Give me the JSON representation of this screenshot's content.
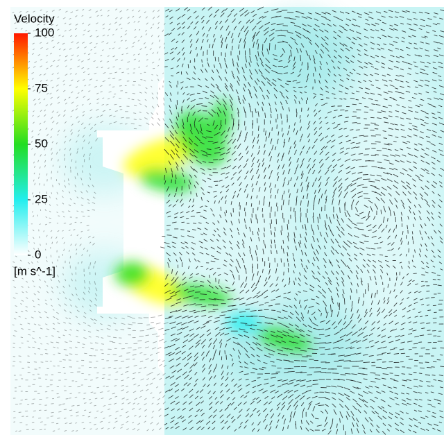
{
  "legend": {
    "title": "Velocity",
    "range": [
      0,
      100
    ],
    "ticks": [
      0,
      25,
      50,
      75,
      100
    ],
    "colors": [
      "#ffffff",
      "#22eeee",
      "#22dd22",
      "#ffff00",
      "#ff1800"
    ],
    "unit": "[m s^-1]"
  }
}
